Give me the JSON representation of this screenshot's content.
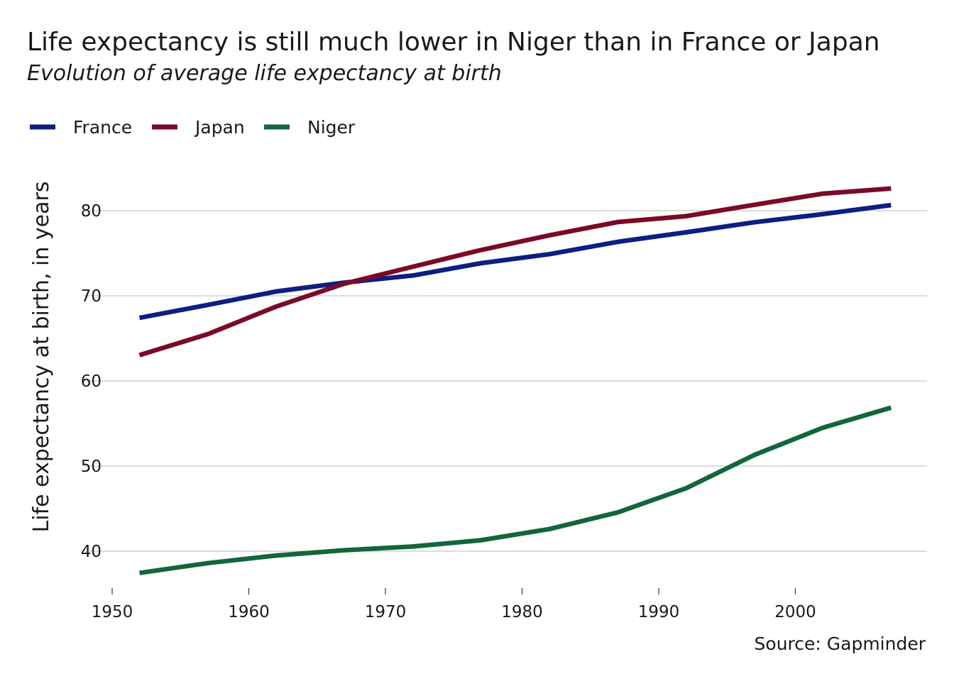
{
  "chart_data": {
    "type": "line",
    "title": "Life expectancy is still much lower in Niger than in France or Japan",
    "subtitle": "Evolution of average life expectancy at birth",
    "xlabel": "",
    "ylabel": "Life expectancy at birth, in years",
    "caption": "Source: Gapminder",
    "legend_position": "top-left",
    "grid": "horizontal",
    "xlim": [
      1950,
      2007
    ],
    "ylim": [
      35,
      85
    ],
    "x_ticks": [
      1950,
      1960,
      1970,
      1980,
      1990,
      2000
    ],
    "y_ticks": [
      40,
      50,
      60,
      70,
      80
    ],
    "x": [
      1952,
      1957,
      1962,
      1967,
      1972,
      1977,
      1982,
      1987,
      1992,
      1997,
      2002,
      2007
    ],
    "series": [
      {
        "name": "France",
        "color": "#0d1f80",
        "values": [
          67.41,
          68.93,
          70.51,
          71.55,
          72.38,
          73.83,
          74.89,
          76.34,
          77.46,
          78.64,
          79.59,
          80.66
        ]
      },
      {
        "name": "Japan",
        "color": "#7a0a26",
        "values": [
          63.03,
          65.5,
          68.73,
          71.43,
          73.42,
          75.38,
          77.11,
          78.67,
          79.36,
          80.69,
          82.0,
          82.6
        ]
      },
      {
        "name": "Niger",
        "color": "#12663d",
        "values": [
          37.44,
          38.6,
          39.49,
          40.12,
          40.55,
          41.29,
          42.6,
          44.56,
          47.39,
          51.31,
          54.5,
          56.87
        ]
      }
    ]
  }
}
